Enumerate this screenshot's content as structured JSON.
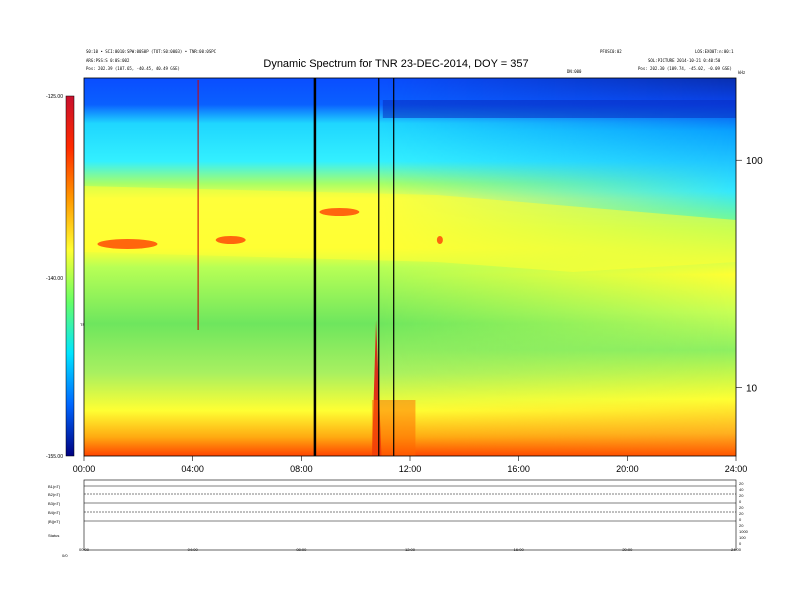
{
  "chart_data": {
    "type": "heatmap",
    "title": "Dynamic Spectrum for TNR 23-DEC-2014, DOY = 357",
    "x_ticks": [
      "00:00",
      "04:00",
      "08:00",
      "12:00",
      "16:00",
      "20:00",
      "24:00"
    ],
    "x_range_hours": [
      0,
      24
    ],
    "y_axis": "log",
    "y_ticks": [
      "10",
      "100"
    ],
    "colorbar_ticks": [
      "-125.00",
      "-140.00",
      "-155.00"
    ],
    "colorbar_range": [
      -155,
      -125
    ],
    "colorbar_label": "TNR",
    "colorbar_colors": [
      "#c8102e",
      "#ff2a00",
      "#ff9900",
      "#ffff33",
      "#66ff66",
      "#00e5ff",
      "#0066ff",
      "#000080"
    ],
    "data_gaps_hours": [
      8.5,
      10.85,
      11.4
    ],
    "series_description": "Background emission: blue/cyan at top band, yellow mid band, green to orange lower band; red bursts near 01:30-02:30 and 05:30 at upper-mid frequencies; bright red/orange low-frequency bursts near 10:40-11:00"
  },
  "header": {
    "left_line1": "S0:10 • SCI:0010:SPW:00S0P (TOT:S0:0003) • TNR:00:0SPC",
    "left_line2": "ARG:PSS:S 0:0S:002",
    "left_line3": "Pos: 202.39 (107.65, -40.45, 40.49 GSE)",
    "right_line1": "PFOSC0:02",
    "right_line1b": "LOS:EXO0T:n:00:1",
    "right_line2": "SOL:PICTURE 2014-10-21 0:40:50",
    "right_line3": "Pos: 202.30 (109.74, -45.02, -0.09 GSE)",
    "right_line4": "DN:000",
    "corner_label": "kHz"
  },
  "bottom": {
    "row_labels": [
      "B1(nT)",
      "B2(nT)",
      "B3(nT)",
      "B4(nT)",
      "|B|(nT)",
      "Status"
    ],
    "right_ticks": [
      "20",
      "40",
      "20",
      "0",
      "20",
      "20",
      "0",
      "20",
      "1000",
      "100",
      "0"
    ],
    "x_ticks": [
      "00:00",
      "04:00",
      "08:00",
      "12:00",
      "16:00",
      "20:00",
      "24:00"
    ],
    "status_label": "Status",
    "status_value": "0/0"
  }
}
